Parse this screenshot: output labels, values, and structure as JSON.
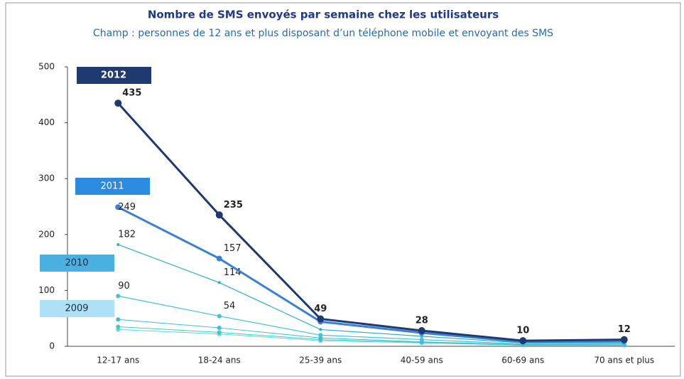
{
  "chart_data": {
    "type": "line",
    "title": "Nombre de SMS envoyés par semaine chez les utilisateurs",
    "subtitle": "Champ : personnes de 12 ans et plus disposant d’un téléphone mobile et envoyant des SMS",
    "categories": [
      "12-17 ans",
      "18-24 ans",
      "25-39 ans",
      "40-59 ans",
      "60-69 ans",
      "70 ans et plus"
    ],
    "ylim": [
      0,
      500
    ],
    "yticks": [
      0,
      100,
      200,
      300,
      400,
      500
    ],
    "grid": false,
    "series": [
      {
        "name": "2012",
        "color": "#1f3a6e",
        "values": [
          435,
          235,
          49,
          28,
          10,
          12
        ],
        "value_labels": [
          "435",
          "235",
          "49",
          "28",
          "10",
          "12"
        ]
      },
      {
        "name": "2011",
        "color": "#3a7fd8",
        "values": [
          249,
          157,
          44,
          24,
          8,
          9
        ],
        "value_labels": [
          "249",
          "157",
          null,
          null,
          null,
          null
        ]
      },
      {
        "name": "2010",
        "color": "#2ab0c8",
        "values": [
          182,
          114,
          30,
          18,
          6,
          6
        ],
        "value_labels": [
          "182",
          "114",
          null,
          null,
          null,
          null
        ]
      },
      {
        "name": "2009",
        "color": "#3cc4d8",
        "values": [
          90,
          54,
          20,
          12,
          4,
          4
        ],
        "value_labels": [
          "90",
          "54",
          null,
          null,
          null,
          null
        ]
      },
      {
        "color": "#38bce6",
        "values": [
          48,
          33,
          15,
          8,
          3,
          2
        ]
      },
      {
        "color": "#3ccfb8",
        "values": [
          35,
          25,
          12,
          7,
          2,
          2
        ]
      },
      {
        "color": "#5cd4ea",
        "values": [
          30,
          22,
          10,
          6,
          2,
          2
        ]
      }
    ]
  }
}
